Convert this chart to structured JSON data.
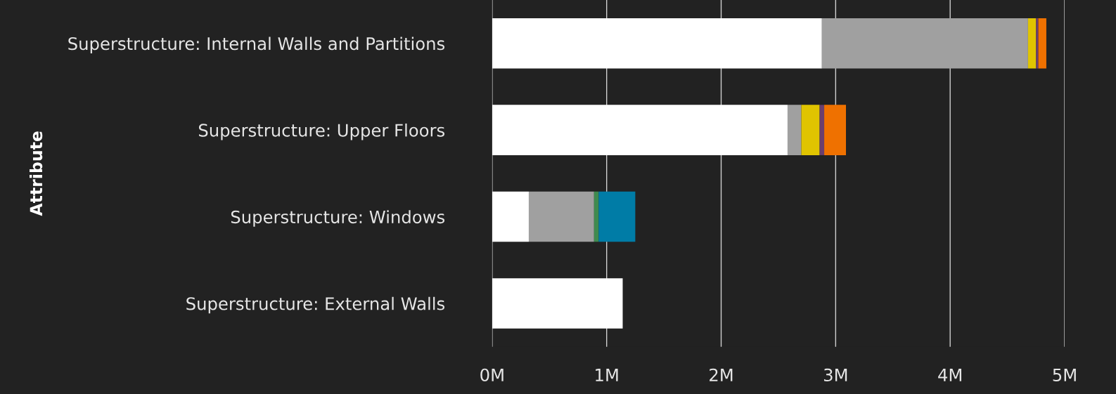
{
  "chart_data": {
    "type": "bar",
    "orientation": "horizontal",
    "stacked": true,
    "ylabel": "Attribute",
    "categories": [
      "Superstructure: Internal Walls and Partitions",
      "Superstructure: Upper Floors",
      "Superstructure: Windows",
      "Superstructure: External Walls"
    ],
    "series": [
      {
        "color": "#ffffff",
        "values": [
          2.88,
          2.58,
          0.32,
          1.14
        ]
      },
      {
        "color": "#a0a0a0",
        "values": [
          1.8,
          0.12,
          0.57,
          null
        ]
      },
      {
        "color": "#3f8a4f",
        "values": [
          null,
          null,
          0.04,
          null
        ]
      },
      {
        "color": "#007ca6",
        "values": [
          null,
          null,
          0.32,
          null
        ]
      },
      {
        "color": "#e0c400",
        "values": [
          0.07,
          0.16,
          null,
          null
        ]
      },
      {
        "color": "#6b3f6e",
        "values": [
          0.02,
          0.04,
          null,
          null
        ]
      },
      {
        "color": "#ef7100",
        "values": [
          0.07,
          0.19,
          null,
          null
        ]
      }
    ],
    "xlim": [
      0,
      5
    ],
    "xticks": [
      {
        "value": 0,
        "label": "0M"
      },
      {
        "value": 1,
        "label": "1M"
      },
      {
        "value": 2,
        "label": "2M"
      },
      {
        "value": 3,
        "label": "3M"
      },
      {
        "value": 4,
        "label": "4M"
      },
      {
        "value": 5,
        "label": "5M"
      }
    ],
    "grid": "x"
  }
}
